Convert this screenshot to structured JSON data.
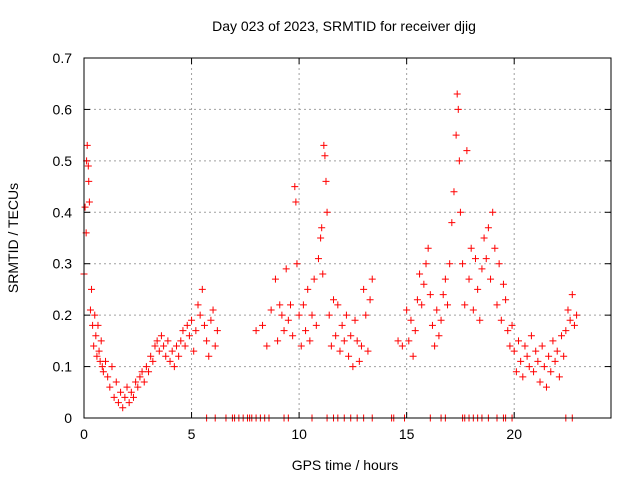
{
  "chart_data": {
    "type": "scatter",
    "title": "Day 023 of 2023, SRMTID for receiver djig",
    "xlabel": "GPS time / hours",
    "ylabel": "SRMTID / TECUs",
    "xlim": [
      0,
      24.5
    ],
    "ylim": [
      0,
      0.7
    ],
    "xticks": [
      0,
      5,
      10,
      15,
      20
    ],
    "xtick_labels": [
      "0",
      "5",
      "10",
      "15",
      "20"
    ],
    "yticks": [
      0,
      0.1,
      0.2,
      0.3,
      0.4,
      0.5,
      0.6,
      0.7
    ],
    "ytick_labels": [
      "0",
      "0.1",
      "0.2",
      "0.3",
      "0.4",
      "0.5",
      "0.6",
      "0.7"
    ],
    "grid": true,
    "marker": "plus",
    "color": "#ff0000",
    "series": [
      {
        "name": "SRMTID",
        "points": [
          [
            0.0,
            0.28
          ],
          [
            0.05,
            0.41
          ],
          [
            0.1,
            0.36
          ],
          [
            0.12,
            0.5
          ],
          [
            0.15,
            0.53
          ],
          [
            0.2,
            0.49
          ],
          [
            0.22,
            0.46
          ],
          [
            0.25,
            0.42
          ],
          [
            0.3,
            0.21
          ],
          [
            0.35,
            0.25
          ],
          [
            0.4,
            0.18
          ],
          [
            0.45,
            0.14
          ],
          [
            0.5,
            0.2
          ],
          [
            0.55,
            0.16
          ],
          [
            0.6,
            0.12
          ],
          [
            0.65,
            0.18
          ],
          [
            0.7,
            0.13
          ],
          [
            0.75,
            0.11
          ],
          [
            0.8,
            0.15
          ],
          [
            0.85,
            0.1
          ],
          [
            0.9,
            0.09
          ],
          [
            1.0,
            0.11
          ],
          [
            1.1,
            0.08
          ],
          [
            1.2,
            0.06
          ],
          [
            1.3,
            0.1
          ],
          [
            1.4,
            0.04
          ],
          [
            1.5,
            0.07
          ],
          [
            1.6,
            0.03
          ],
          [
            1.7,
            0.05
          ],
          [
            1.8,
            0.02
          ],
          [
            1.9,
            0.04
          ],
          [
            2.0,
            0.06
          ],
          [
            2.1,
            0.03
          ],
          [
            2.2,
            0.05
          ],
          [
            2.3,
            0.04
          ],
          [
            2.4,
            0.07
          ],
          [
            2.5,
            0.06
          ],
          [
            2.6,
            0.08
          ],
          [
            2.7,
            0.09
          ],
          [
            2.8,
            0.07
          ],
          [
            2.9,
            0.1
          ],
          [
            3.0,
            0.09
          ],
          [
            3.1,
            0.12
          ],
          [
            3.2,
            0.11
          ],
          [
            3.3,
            0.14
          ],
          [
            3.4,
            0.15
          ],
          [
            3.5,
            0.13
          ],
          [
            3.6,
            0.16
          ],
          [
            3.7,
            0.14
          ],
          [
            3.8,
            0.12
          ],
          [
            3.9,
            0.15
          ],
          [
            4.0,
            0.11
          ],
          [
            4.1,
            0.13
          ],
          [
            4.2,
            0.1
          ],
          [
            4.3,
            0.14
          ],
          [
            4.4,
            0.12
          ],
          [
            4.5,
            0.15
          ],
          [
            4.6,
            0.17
          ],
          [
            4.7,
            0.14
          ],
          [
            4.8,
            0.18
          ],
          [
            4.9,
            0.16
          ],
          [
            5.0,
            0.19
          ],
          [
            5.1,
            0.13
          ],
          [
            5.2,
            0.17
          ],
          [
            5.3,
            0.22
          ],
          [
            5.4,
            0.2
          ],
          [
            5.5,
            0.25
          ],
          [
            5.6,
            0.18
          ],
          [
            5.7,
            0.15
          ],
          [
            5.8,
            0.12
          ],
          [
            5.9,
            0.19
          ],
          [
            6.0,
            0.21
          ],
          [
            6.1,
            0.14
          ],
          [
            6.2,
            0.17
          ],
          [
            8.0,
            0.17
          ],
          [
            8.3,
            0.18
          ],
          [
            8.5,
            0.14
          ],
          [
            8.7,
            0.21
          ],
          [
            8.9,
            0.27
          ],
          [
            9.0,
            0.15
          ],
          [
            9.1,
            0.22
          ],
          [
            9.2,
            0.2
          ],
          [
            9.3,
            0.17
          ],
          [
            9.4,
            0.29
          ],
          [
            9.5,
            0.19
          ],
          [
            9.6,
            0.22
          ],
          [
            9.7,
            0.16
          ],
          [
            9.8,
            0.45
          ],
          [
            9.85,
            0.42
          ],
          [
            9.9,
            0.3
          ],
          [
            10.0,
            0.2
          ],
          [
            10.1,
            0.14
          ],
          [
            10.2,
            0.22
          ],
          [
            10.3,
            0.17
          ],
          [
            10.4,
            0.25
          ],
          [
            10.5,
            0.15
          ],
          [
            10.6,
            0.2
          ],
          [
            10.7,
            0.27
          ],
          [
            10.8,
            0.18
          ],
          [
            10.9,
            0.31
          ],
          [
            11.0,
            0.35
          ],
          [
            11.05,
            0.37
          ],
          [
            11.1,
            0.28
          ],
          [
            11.15,
            0.53
          ],
          [
            11.2,
            0.51
          ],
          [
            11.25,
            0.46
          ],
          [
            11.3,
            0.4
          ],
          [
            11.4,
            0.2
          ],
          [
            11.5,
            0.14
          ],
          [
            11.6,
            0.23
          ],
          [
            11.7,
            0.16
          ],
          [
            11.8,
            0.22
          ],
          [
            11.9,
            0.13
          ],
          [
            12.0,
            0.18
          ],
          [
            12.1,
            0.15
          ],
          [
            12.2,
            0.2
          ],
          [
            12.3,
            0.12
          ],
          [
            12.4,
            0.16
          ],
          [
            12.5,
            0.1
          ],
          [
            12.6,
            0.19
          ],
          [
            12.7,
            0.15
          ],
          [
            12.8,
            0.11
          ],
          [
            12.9,
            0.14
          ],
          [
            13.0,
            0.25
          ],
          [
            13.1,
            0.2
          ],
          [
            13.2,
            0.13
          ],
          [
            13.3,
            0.23
          ],
          [
            13.4,
            0.27
          ],
          [
            14.6,
            0.15
          ],
          [
            14.8,
            0.14
          ],
          [
            15.0,
            0.21
          ],
          [
            15.1,
            0.15
          ],
          [
            15.2,
            0.19
          ],
          [
            15.3,
            0.12
          ],
          [
            15.4,
            0.17
          ],
          [
            15.5,
            0.23
          ],
          [
            15.6,
            0.28
          ],
          [
            15.7,
            0.22
          ],
          [
            15.8,
            0.26
          ],
          [
            15.9,
            0.3
          ],
          [
            16.0,
            0.33
          ],
          [
            16.1,
            0.24
          ],
          [
            16.2,
            0.18
          ],
          [
            16.3,
            0.14
          ],
          [
            16.4,
            0.21
          ],
          [
            16.5,
            0.16
          ],
          [
            16.6,
            0.19
          ],
          [
            16.7,
            0.24
          ],
          [
            16.8,
            0.27
          ],
          [
            16.9,
            0.22
          ],
          [
            17.0,
            0.3
          ],
          [
            17.1,
            0.38
          ],
          [
            17.2,
            0.44
          ],
          [
            17.3,
            0.55
          ],
          [
            17.35,
            0.63
          ],
          [
            17.4,
            0.6
          ],
          [
            17.45,
            0.5
          ],
          [
            17.5,
            0.4
          ],
          [
            17.6,
            0.3
          ],
          [
            17.7,
            0.22
          ],
          [
            17.8,
            0.52
          ],
          [
            17.9,
            0.27
          ],
          [
            18.0,
            0.33
          ],
          [
            18.1,
            0.21
          ],
          [
            18.2,
            0.31
          ],
          [
            18.3,
            0.25
          ],
          [
            18.4,
            0.19
          ],
          [
            18.5,
            0.29
          ],
          [
            18.6,
            0.35
          ],
          [
            18.7,
            0.31
          ],
          [
            18.8,
            0.37
          ],
          [
            18.9,
            0.27
          ],
          [
            19.0,
            0.4
          ],
          [
            19.1,
            0.33
          ],
          [
            19.2,
            0.22
          ],
          [
            19.3,
            0.3
          ],
          [
            19.4,
            0.19
          ],
          [
            19.5,
            0.26
          ],
          [
            19.6,
            0.23
          ],
          [
            19.7,
            0.17
          ],
          [
            19.8,
            0.14
          ],
          [
            19.9,
            0.18
          ],
          [
            20.0,
            0.13
          ],
          [
            20.1,
            0.09
          ],
          [
            20.2,
            0.15
          ],
          [
            20.3,
            0.11
          ],
          [
            20.4,
            0.08
          ],
          [
            20.5,
            0.14
          ],
          [
            20.6,
            0.12
          ],
          [
            20.7,
            0.1
          ],
          [
            20.8,
            0.16
          ],
          [
            20.9,
            0.09
          ],
          [
            21.0,
            0.13
          ],
          [
            21.1,
            0.11
          ],
          [
            21.2,
            0.07
          ],
          [
            21.3,
            0.14
          ],
          [
            21.4,
            0.1
          ],
          [
            21.5,
            0.06
          ],
          [
            21.6,
            0.12
          ],
          [
            21.7,
            0.09
          ],
          [
            21.8,
            0.15
          ],
          [
            21.9,
            0.11
          ],
          [
            22.0,
            0.13
          ],
          [
            22.1,
            0.08
          ],
          [
            22.2,
            0.16
          ],
          [
            22.3,
            0.12
          ],
          [
            22.4,
            0.17
          ],
          [
            22.5,
            0.21
          ],
          [
            22.6,
            0.19
          ],
          [
            22.7,
            0.24
          ],
          [
            22.8,
            0.18
          ],
          [
            22.9,
            0.2
          ],
          [
            5.7,
            0.0
          ],
          [
            6.1,
            0.0
          ],
          [
            6.6,
            0.0
          ],
          [
            6.9,
            0.0
          ],
          [
            7.0,
            0.0
          ],
          [
            7.2,
            0.0
          ],
          [
            7.4,
            0.0
          ],
          [
            7.6,
            0.0
          ],
          [
            7.7,
            0.0
          ],
          [
            7.8,
            0.0
          ],
          [
            8.0,
            0.0
          ],
          [
            8.2,
            0.0
          ],
          [
            8.4,
            0.0
          ],
          [
            8.6,
            0.0
          ],
          [
            9.3,
            0.0
          ],
          [
            9.5,
            0.0
          ],
          [
            10.6,
            0.0
          ],
          [
            11.3,
            0.0
          ],
          [
            11.6,
            0.0
          ],
          [
            11.8,
            0.0
          ],
          [
            12.1,
            0.0
          ],
          [
            12.4,
            0.0
          ],
          [
            12.7,
            0.0
          ],
          [
            13.0,
            0.0
          ],
          [
            13.4,
            0.0
          ],
          [
            14.3,
            0.0
          ],
          [
            14.4,
            0.0
          ],
          [
            14.9,
            0.0
          ],
          [
            16.1,
            0.0
          ],
          [
            16.6,
            0.0
          ],
          [
            16.8,
            0.0
          ],
          [
            17.6,
            0.0
          ],
          [
            17.7,
            0.0
          ],
          [
            17.9,
            0.0
          ],
          [
            18.1,
            0.0
          ],
          [
            18.3,
            0.0
          ],
          [
            18.5,
            0.0
          ],
          [
            18.8,
            0.0
          ],
          [
            19.2,
            0.0
          ],
          [
            19.5,
            0.0
          ],
          [
            19.6,
            0.0
          ],
          [
            19.9,
            0.0
          ],
          [
            22.4,
            0.0
          ],
          [
            22.7,
            0.0
          ]
        ]
      }
    ]
  }
}
